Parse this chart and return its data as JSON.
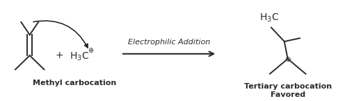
{
  "background_color": "#ffffff",
  "text_color": "#2a2a2a",
  "reaction_label": "Electrophilic Addition",
  "reactant_label": "Methyl carbocation",
  "product_label1": "Tertiary carbocation",
  "product_label2": "Favored",
  "plus_sign": "+",
  "figsize": [
    4.96,
    1.46
  ],
  "dpi": 100
}
